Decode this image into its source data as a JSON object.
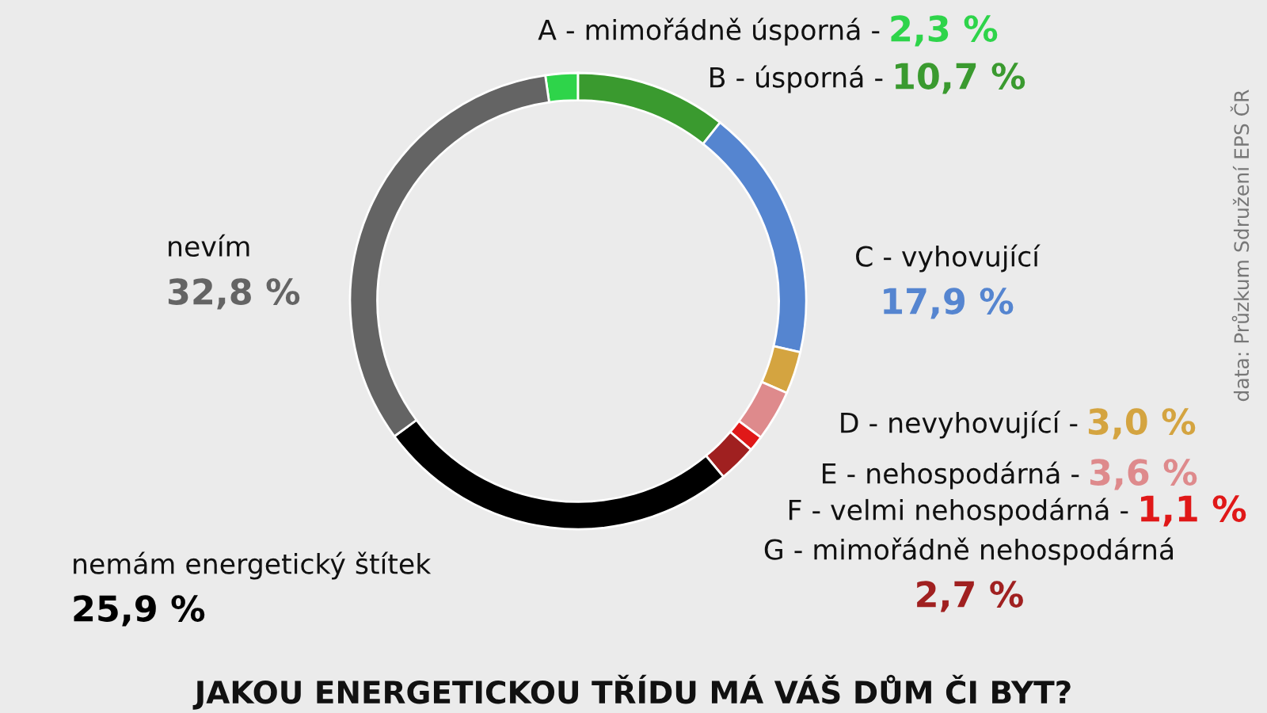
{
  "chart_data": {
    "type": "donut",
    "title": "JAKOU ENERGETICKOU TŘÍDU MÁ VÁŠ DŮM ČI BYT?",
    "categories": [
      "A - mimořádně úsporná -",
      "B - úsporná -",
      "C - vyhovující",
      "D - nevyhovující -",
      "E - nehospodárná -",
      "F - velmi nehospodárná -",
      "G - mimořádně nehospodárná",
      "nemám energetický štítek",
      "nevím"
    ],
    "values": [
      2.3,
      10.7,
      17.9,
      3.0,
      3.6,
      1.1,
      2.7,
      25.9,
      32.8
    ],
    "value_labels": [
      "2,3 %",
      "10,7 %",
      "17,9 %",
      "3,0 %",
      "3,6 %",
      "1,1 %",
      "2,7 %",
      "25,9 %",
      "32,8 %"
    ],
    "colors": [
      "#2ed44a",
      "#3a9a2f",
      "#5585d0",
      "#d4a440",
      "#de8a8c",
      "#e01818",
      "#a02020",
      "#000000",
      "#646464"
    ],
    "annotations": [
      "data: Průzkum Sdružení EPS ČR"
    ]
  }
}
